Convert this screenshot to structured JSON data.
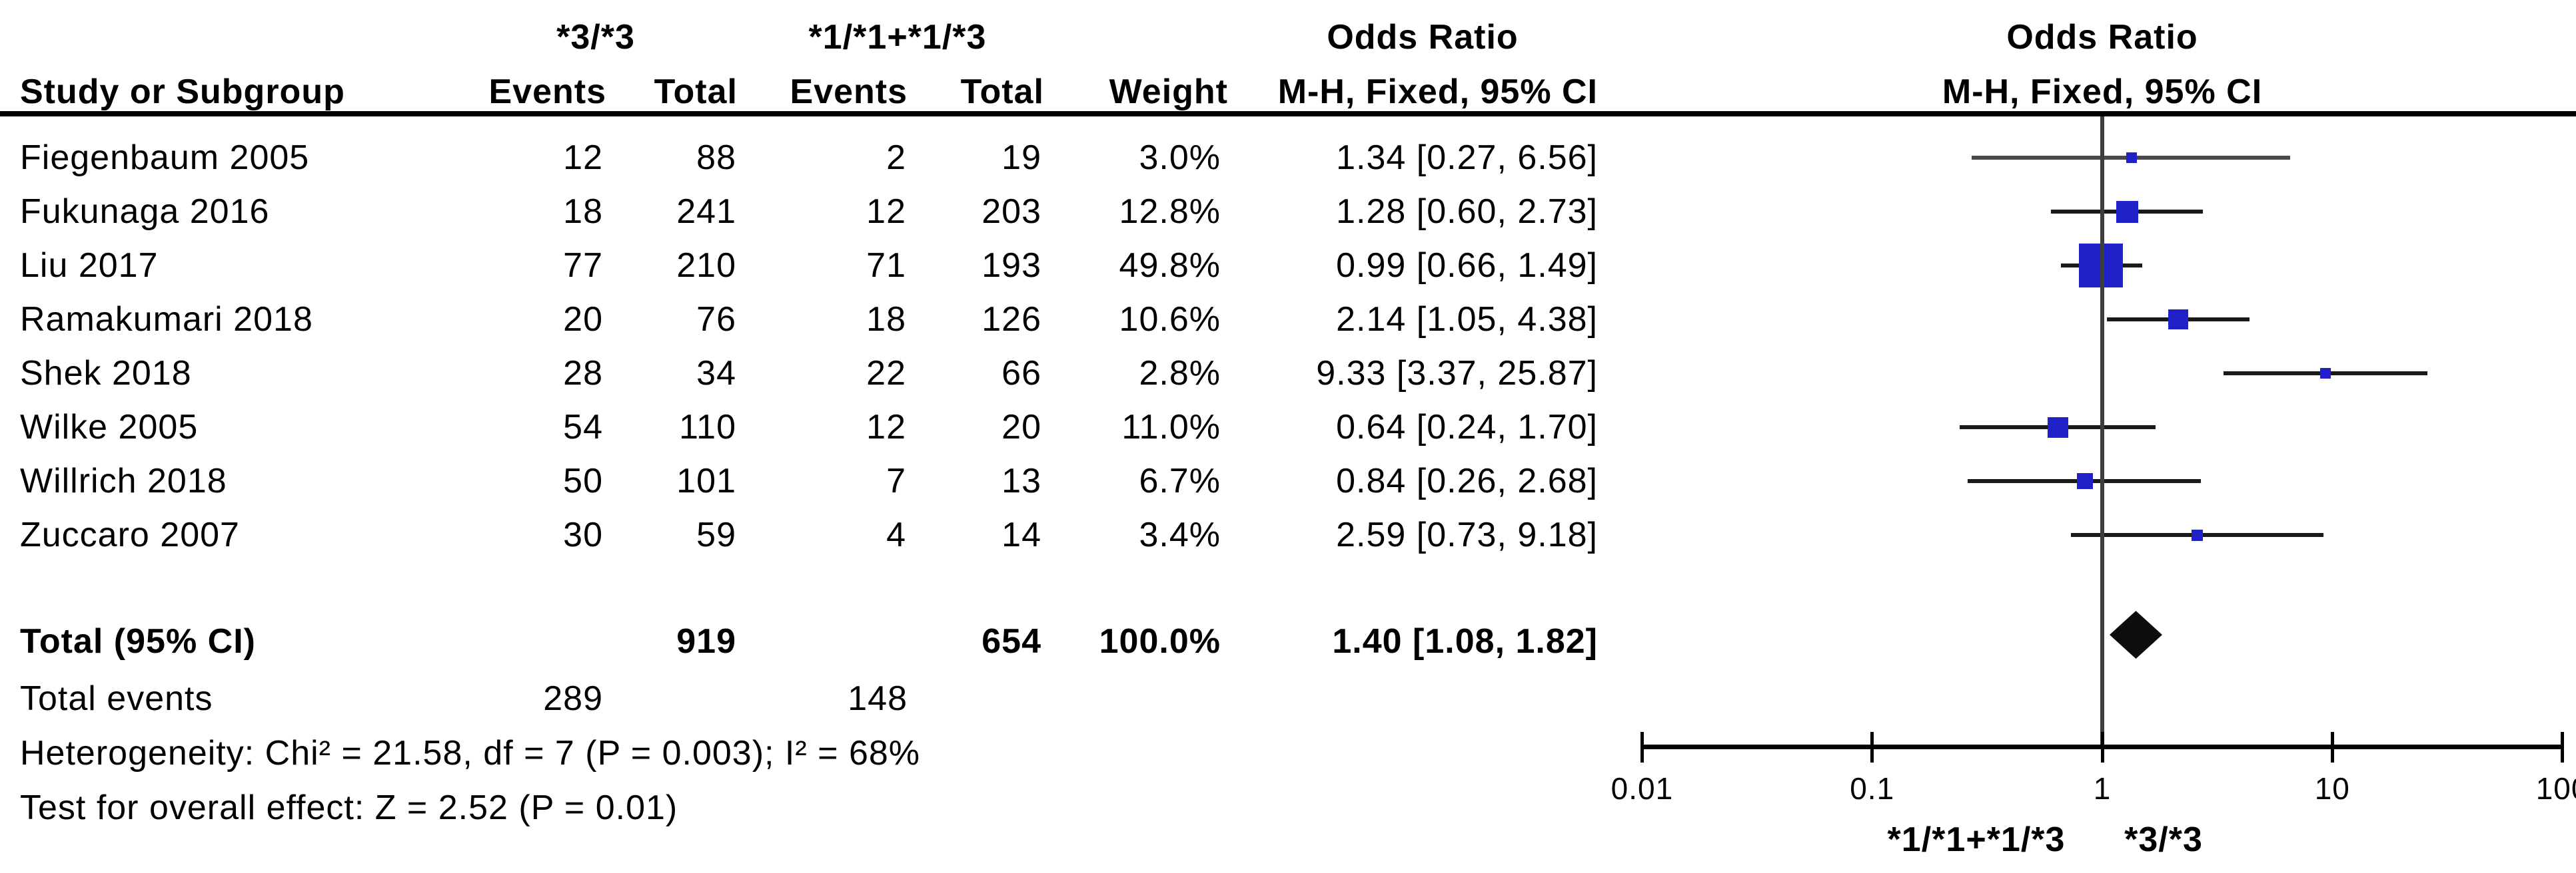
{
  "table": {
    "study_col_header": "Study or Subgroup",
    "group1_label": "*3/*3",
    "group2_label": "*1/*1+*1/*3",
    "events_header": "Events",
    "total_header": "Total",
    "weight_header": "Weight",
    "or_col_title": "Odds Ratio",
    "or_col_subtitle": "M-H, Fixed, 95% CI",
    "studies": [
      {
        "name": "Fiegenbaum 2005",
        "events1": "12",
        "total1": "88",
        "events2": "2",
        "total2": "19",
        "weight": "3.0%",
        "or_ci": "1.34 [0.27, 6.56]"
      },
      {
        "name": "Fukunaga 2016",
        "events1": "18",
        "total1": "241",
        "events2": "12",
        "total2": "203",
        "weight": "12.8%",
        "or_ci": "1.28 [0.60, 2.73]"
      },
      {
        "name": "Liu 2017",
        "events1": "77",
        "total1": "210",
        "events2": "71",
        "total2": "193",
        "weight": "49.8%",
        "or_ci": "0.99 [0.66, 1.49]"
      },
      {
        "name": "Ramakumari 2018",
        "events1": "20",
        "total1": "76",
        "events2": "18",
        "total2": "126",
        "weight": "10.6%",
        "or_ci": "2.14 [1.05, 4.38]"
      },
      {
        "name": "Shek 2018",
        "events1": "28",
        "total1": "34",
        "events2": "22",
        "total2": "66",
        "weight": "2.8%",
        "or_ci": "9.33 [3.37, 25.87]"
      },
      {
        "name": "Wilke 2005",
        "events1": "54",
        "total1": "110",
        "events2": "12",
        "total2": "20",
        "weight": "11.0%",
        "or_ci": "0.64 [0.24, 1.70]"
      },
      {
        "name": "Willrich 2018",
        "events1": "50",
        "total1": "101",
        "events2": "7",
        "total2": "13",
        "weight": "6.7%",
        "or_ci": "0.84 [0.26, 2.68]"
      },
      {
        "name": "Zuccaro 2007",
        "events1": "30",
        "total1": "59",
        "events2": "4",
        "total2": "14",
        "weight": "3.4%",
        "or_ci": "2.59 [0.73, 9.18]"
      }
    ],
    "total_row": {
      "label": "Total (95% CI)",
      "total1": "919",
      "total2": "654",
      "weight": "100.0%",
      "or_ci": "1.40 [1.08, 1.82]"
    },
    "total_events_row": {
      "label": "Total events",
      "events1": "289",
      "events2": "148"
    },
    "heterogeneity": "Heterogeneity: Chi² = 21.58, df = 7 (P = 0.003); I² = 68%",
    "overall_effect": "Test for overall effect: Z = 2.52 (P = 0.01)"
  },
  "plot": {
    "title": "Odds Ratio",
    "subtitle": "M-H, Fixed, 95% CI",
    "tick_labels": [
      "0.01",
      "0.1",
      "1",
      "10",
      "100"
    ],
    "footer_left": "*1/*1+*1/*3",
    "footer_right": "*3/*3",
    "square_color": "#2121c8",
    "diamond_color": "#0d0d0d",
    "line_color": "#1a1a1a",
    "first_row_line_color": "#4a4a4a",
    "center_line_color": "#3e3e3e"
  },
  "chart_data": {
    "type": "forest",
    "effect_measure": "Odds Ratio (M-H, Fixed, 95% CI)",
    "x_scale": "log",
    "x_range": [
      0.01,
      100
    ],
    "x_ticks": [
      0.01,
      0.1,
      1,
      10,
      100
    ],
    "null_line": 1,
    "studies": [
      {
        "name": "Fiegenbaum 2005",
        "or": 1.34,
        "ci_low": 0.27,
        "ci_high": 6.56,
        "weight_pct": 3.0
      },
      {
        "name": "Fukunaga 2016",
        "or": 1.28,
        "ci_low": 0.6,
        "ci_high": 2.73,
        "weight_pct": 12.8
      },
      {
        "name": "Liu 2017",
        "or": 0.99,
        "ci_low": 0.66,
        "ci_high": 1.49,
        "weight_pct": 49.8
      },
      {
        "name": "Ramakumari 2018",
        "or": 2.14,
        "ci_low": 1.05,
        "ci_high": 4.38,
        "weight_pct": 10.6
      },
      {
        "name": "Shek 2018",
        "or": 9.33,
        "ci_low": 3.37,
        "ci_high": 25.87,
        "weight_pct": 2.8
      },
      {
        "name": "Wilke 2005",
        "or": 0.64,
        "ci_low": 0.24,
        "ci_high": 1.7,
        "weight_pct": 11.0
      },
      {
        "name": "Willrich 2018",
        "or": 0.84,
        "ci_low": 0.26,
        "ci_high": 2.68,
        "weight_pct": 6.7
      },
      {
        "name": "Zuccaro 2007",
        "or": 2.59,
        "ci_low": 0.73,
        "ci_high": 9.18,
        "weight_pct": 3.4
      }
    ],
    "total": {
      "label": "Total (95% CI)",
      "or": 1.4,
      "ci_low": 1.08,
      "ci_high": 1.82,
      "weight_pct": 100.0,
      "events1": 289,
      "total1": 919,
      "events2": 148,
      "total2": 654
    },
    "heterogeneity": {
      "chi2": 21.58,
      "df": 7,
      "p": 0.003,
      "i2_pct": 68
    },
    "overall_effect": {
      "z": 2.52,
      "p": 0.01
    },
    "group_labels": [
      "*3/*3",
      "*1/*1+*1/*3"
    ],
    "footer_labels": [
      "*1/*1+*1/*3",
      "*3/*3"
    ]
  }
}
